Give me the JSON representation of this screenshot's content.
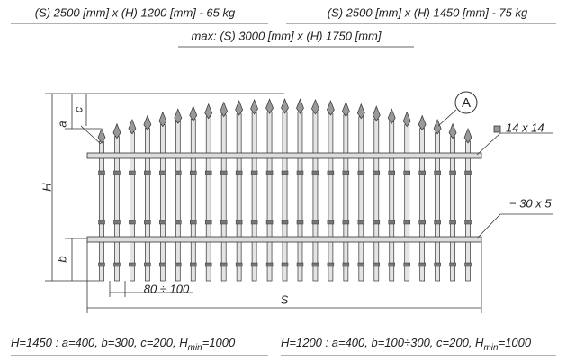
{
  "header": {
    "left": "(S) 2500 [mm] x (H) 1200 [mm]  -  65 kg",
    "right": "(S) 2500 [mm] x (H) 1450 [mm]  -  75 kg",
    "max": "max: (S) 3000 [mm] x (H) 1750 [mm]"
  },
  "drawing": {
    "detail": "A",
    "rail_top": "14 x 14",
    "rail_bottom": "− 30 x 5",
    "dim_h": "H",
    "dim_a": "a",
    "dim_c": "c",
    "dim_b": "b",
    "dim_s": "S",
    "spacing": "80 ÷ 100"
  },
  "footer": {
    "left": {
      "text": "H=1450 : a=400, b=300, c=200, H",
      "sub": "min",
      "tail": "=1000"
    },
    "right": {
      "text": "H=1200 : a=400, b=100÷300, c=200, H",
      "sub": "min",
      "tail": "=1000"
    }
  }
}
